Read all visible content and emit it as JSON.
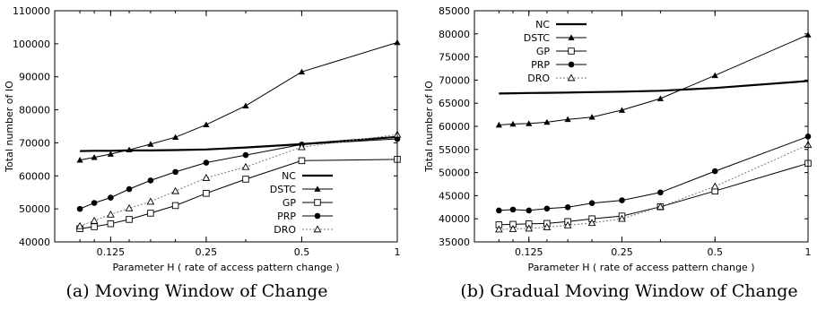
{
  "chart_data": [
    {
      "type": "line",
      "caption": "(a) Moving Window of Change",
      "xlabel": "Parameter H ( rate of access pattern change )",
      "ylabel": "Total number of IO",
      "x_scale": "log",
      "xlim": [
        0.0833,
        1.0
      ],
      "ylim": [
        40000,
        110000
      ],
      "x_ticks": [
        0.125,
        0.25,
        0.5,
        1
      ],
      "x_tick_labels": [
        "0.125",
        "0.25",
        "0.5",
        "1"
      ],
      "y_ticks": [
        40000,
        50000,
        60000,
        70000,
        80000,
        90000,
        100000,
        110000
      ],
      "y_tick_labels": [
        "40000",
        "50000",
        "60000",
        "70000",
        "80000",
        "90000",
        "100000",
        "110000"
      ],
      "legend_position": "bottom-right",
      "x": [
        0.1,
        0.111,
        0.125,
        0.143,
        0.167,
        0.2,
        0.25,
        0.333,
        0.5,
        1.0
      ],
      "series": [
        {
          "name": "NC",
          "marker": "none",
          "values": [
            67500,
            67600,
            67600,
            67700,
            67700,
            67800,
            68000,
            68600,
            69600,
            71800
          ]
        },
        {
          "name": "DSTC",
          "marker": "triangle-filled",
          "values": [
            64800,
            65600,
            66600,
            67900,
            69600,
            71700,
            75500,
            81200,
            91500,
            100400
          ]
        },
        {
          "name": "GP",
          "marker": "square-open",
          "values": [
            44000,
            44600,
            45500,
            46800,
            48700,
            51000,
            54700,
            59000,
            64600,
            65000
          ]
        },
        {
          "name": "PRP",
          "marker": "circle-filled",
          "values": [
            50000,
            51800,
            53400,
            56000,
            58600,
            61200,
            64000,
            66300,
            69500,
            71200
          ]
        },
        {
          "name": "DRO",
          "marker": "triangle-open",
          "values": [
            44800,
            46400,
            48300,
            50200,
            52200,
            55400,
            59400,
            62700,
            68700,
            72500
          ]
        }
      ]
    },
    {
      "type": "line",
      "caption": "(b) Gradual Moving Window of Change",
      "xlabel": "Parameter H ( rate of access pattern change )",
      "ylabel": "Total number of IO",
      "x_scale": "log",
      "xlim": [
        0.0833,
        1.0
      ],
      "ylim": [
        35000,
        85000
      ],
      "x_ticks": [
        0.125,
        0.25,
        0.5,
        1
      ],
      "x_tick_labels": [
        "0.125",
        "0.25",
        "0.5",
        "1"
      ],
      "y_ticks": [
        35000,
        40000,
        45000,
        50000,
        55000,
        60000,
        65000,
        70000,
        75000,
        80000,
        85000
      ],
      "y_tick_labels": [
        "35000",
        "40000",
        "45000",
        "50000",
        "55000",
        "60000",
        "65000",
        "70000",
        "75000",
        "80000",
        "85000"
      ],
      "legend_position": "top-left",
      "x": [
        0.1,
        0.111,
        0.125,
        0.143,
        0.167,
        0.2,
        0.25,
        0.333,
        0.5,
        1.0
      ],
      "series": [
        {
          "name": "NC",
          "marker": "none",
          "values": [
            67100,
            67150,
            67200,
            67250,
            67300,
            67400,
            67500,
            67700,
            68300,
            69800
          ]
        },
        {
          "name": "DSTC",
          "marker": "triangle-filled",
          "values": [
            60300,
            60500,
            60600,
            60900,
            61500,
            62000,
            63500,
            66000,
            71000,
            79800
          ]
        },
        {
          "name": "GP",
          "marker": "square-open",
          "values": [
            38700,
            38800,
            38900,
            39000,
            39400,
            40000,
            40600,
            42600,
            46000,
            52000
          ]
        },
        {
          "name": "PRP",
          "marker": "circle-filled",
          "values": [
            41800,
            42000,
            41800,
            42200,
            42500,
            43400,
            44000,
            45700,
            50300,
            57800
          ]
        },
        {
          "name": "DRO",
          "marker": "triangle-open",
          "values": [
            37700,
            37800,
            37900,
            38200,
            38600,
            39100,
            40000,
            42600,
            47000,
            56000
          ]
        }
      ]
    }
  ]
}
